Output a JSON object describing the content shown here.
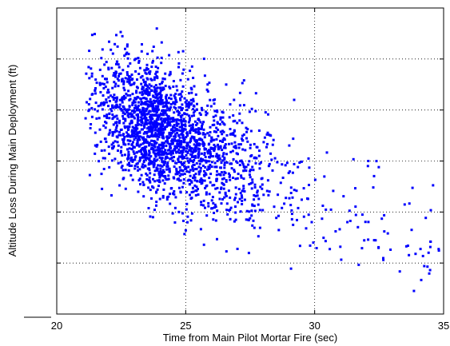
{
  "chart_data": {
    "type": "scatter",
    "xlabel": "Time from Main Pilot Mortar Fire (sec)",
    "ylabel": "Altitude Loss During Main Deployment (ft)",
    "xlim": [
      20,
      35
    ],
    "ylim": [
      0,
      6
    ],
    "x_ticks": [
      "20",
      "25",
      "30",
      "35"
    ],
    "y_ticks": [
      "",
      "",
      "",
      "",
      "",
      "",
      ""
    ],
    "grid": true,
    "marker_color": "#0000ff",
    "marker": "dot",
    "point_count": 2200
  }
}
